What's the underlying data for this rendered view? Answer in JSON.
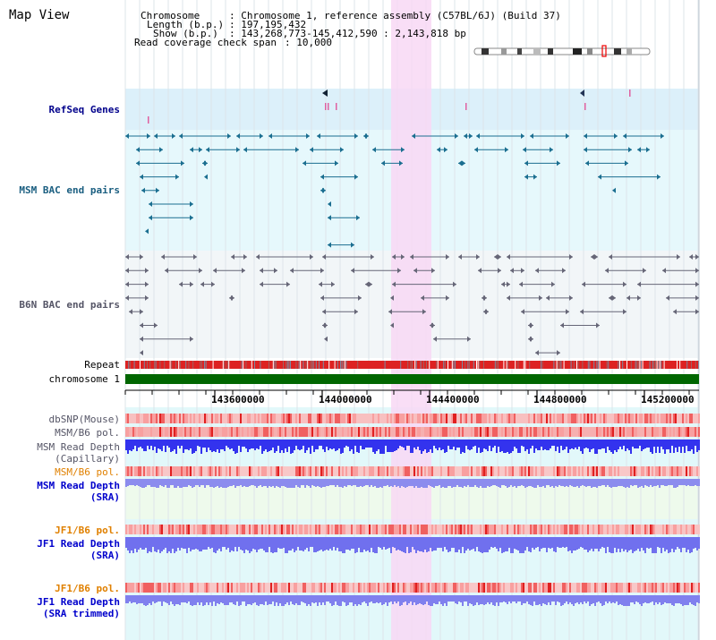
{
  "app_title": "Map View",
  "header": {
    "chromosome_label": "Chromosome",
    "chromosome_value": ": Chromosome 1, reference assembly (C57BL/6J) (Build 37)",
    "length_label": "Length (b.p.)",
    "length_value": ": 197,195,432",
    "show_label": "Show (b.p.)",
    "show_value": ": 143,268,773-145,412,590 : 2,143,818 bp",
    "span_label": "Read coverage check span",
    "span_value": ": 10,000"
  },
  "tracks": {
    "refseq": "RefSeq Genes",
    "msm_bac": "MSM BAC end pairs",
    "b6n_bac": "B6N BAC end pairs",
    "repeat": "Repeat",
    "chromosome": "chromosome 1",
    "dbsnp": "dbSNP(Mouse)",
    "msm_pol_1": "MSM/B6 pol.",
    "msm_depth_cap_1": "MSM Read Depth",
    "msm_depth_cap_2": "(Capillary)",
    "msm_pol_2": "MSM/B6 pol.",
    "msm_depth_sra_1": "MSM Read Depth",
    "msm_depth_sra_2": "(SRA)",
    "jf1_pol_1": "JF1/B6 pol.",
    "jf1_depth_sra_1": "JF1 Read Depth",
    "jf1_depth_sra_2": "(SRA)",
    "jf1_pol_2": "JF1/B6 pol.",
    "jf1_depth_trim_1": "JF1 Read Depth",
    "jf1_depth_trim_2": "(SRA trimmed)"
  },
  "axis": {
    "ticks": [
      "143600000",
      "144000000",
      "144400000",
      "144800000",
      "145200000"
    ]
  },
  "colors": {
    "refseq_bg": "#dcf0fa",
    "bac_bg": "#e6f8fc",
    "highlight": "#f8d8f4",
    "chromosome_bar": "#006600",
    "repeat": "#dd2222",
    "depth_cap": "#3333ee",
    "depth_sra": "#8888ee"
  }
}
